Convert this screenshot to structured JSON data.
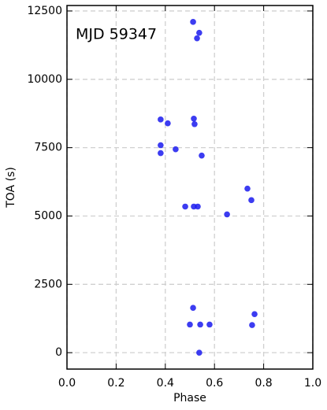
{
  "chart_data": {
    "type": "scatter",
    "annotation": "MJD 59347",
    "x_label": "Phase",
    "y_label": "TOA (s)",
    "color": "#1a1aee",
    "grid": true,
    "xlim": [
      0,
      1
    ],
    "ylim": [
      -600,
      12700
    ],
    "xticks": [
      {
        "value": 0,
        "label": "0.0"
      },
      {
        "value": 0.2,
        "label": "0.2"
      },
      {
        "value": 0.4,
        "label": "0.4"
      },
      {
        "value": 0.6,
        "label": "0.6"
      },
      {
        "value": 0.8,
        "label": "0.8"
      },
      {
        "value": 1,
        "label": "1.0"
      }
    ],
    "yticks": [
      0,
      2500,
      5000,
      7500,
      10000,
      12500
    ],
    "x": [
      0.513,
      0.538,
      0.529,
      0.381,
      0.41,
      0.516,
      0.519,
      0.381,
      0.381,
      0.442,
      0.548,
      0.734,
      0.75,
      0.481,
      0.516,
      0.532,
      0.651,
      0.513,
      0.5,
      0.542,
      0.58,
      0.753,
      0.763,
      0.538
    ],
    "values": [
      12100,
      11700,
      11500,
      8530,
      8390,
      8560,
      8360,
      7590,
      7300,
      7440,
      7210,
      6000,
      5580,
      5345,
      5345,
      5345,
      5060,
      1640,
      1030,
      1030,
      1030,
      1010,
      1410,
      0
    ]
  }
}
